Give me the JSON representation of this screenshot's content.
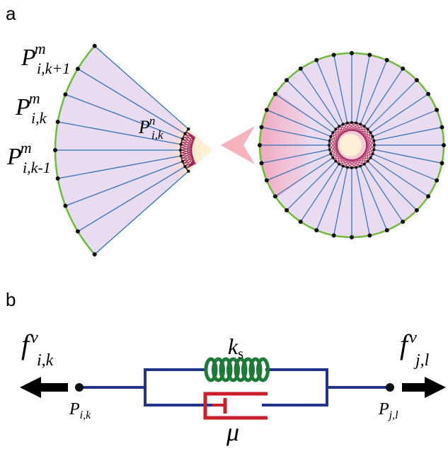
{
  "panel_a": {
    "label": "a",
    "outer_labels": [
      {
        "base": "P",
        "sup": "m",
        "sub": "i,k+1"
      },
      {
        "base": "P",
        "sup": "m",
        "sub": "i,k"
      },
      {
        "base": "P",
        "sup": "m",
        "sub": "i,k-1"
      }
    ],
    "inner_label": {
      "base": "P",
      "sup": "n",
      "sub": "i,k"
    }
  },
  "panel_b": {
    "label": "b",
    "spring_label": {
      "base": "k",
      "sub": "s"
    },
    "damper_label": "μ",
    "force_left": {
      "base": "f",
      "sup": "v",
      "sub": "i,k"
    },
    "force_right": {
      "base": "f",
      "sup": "v",
      "sub": "j,l"
    },
    "point_left": {
      "base": "P",
      "sub": "i,k"
    },
    "point_right": {
      "base": "P",
      "sub": "j,l"
    }
  }
}
